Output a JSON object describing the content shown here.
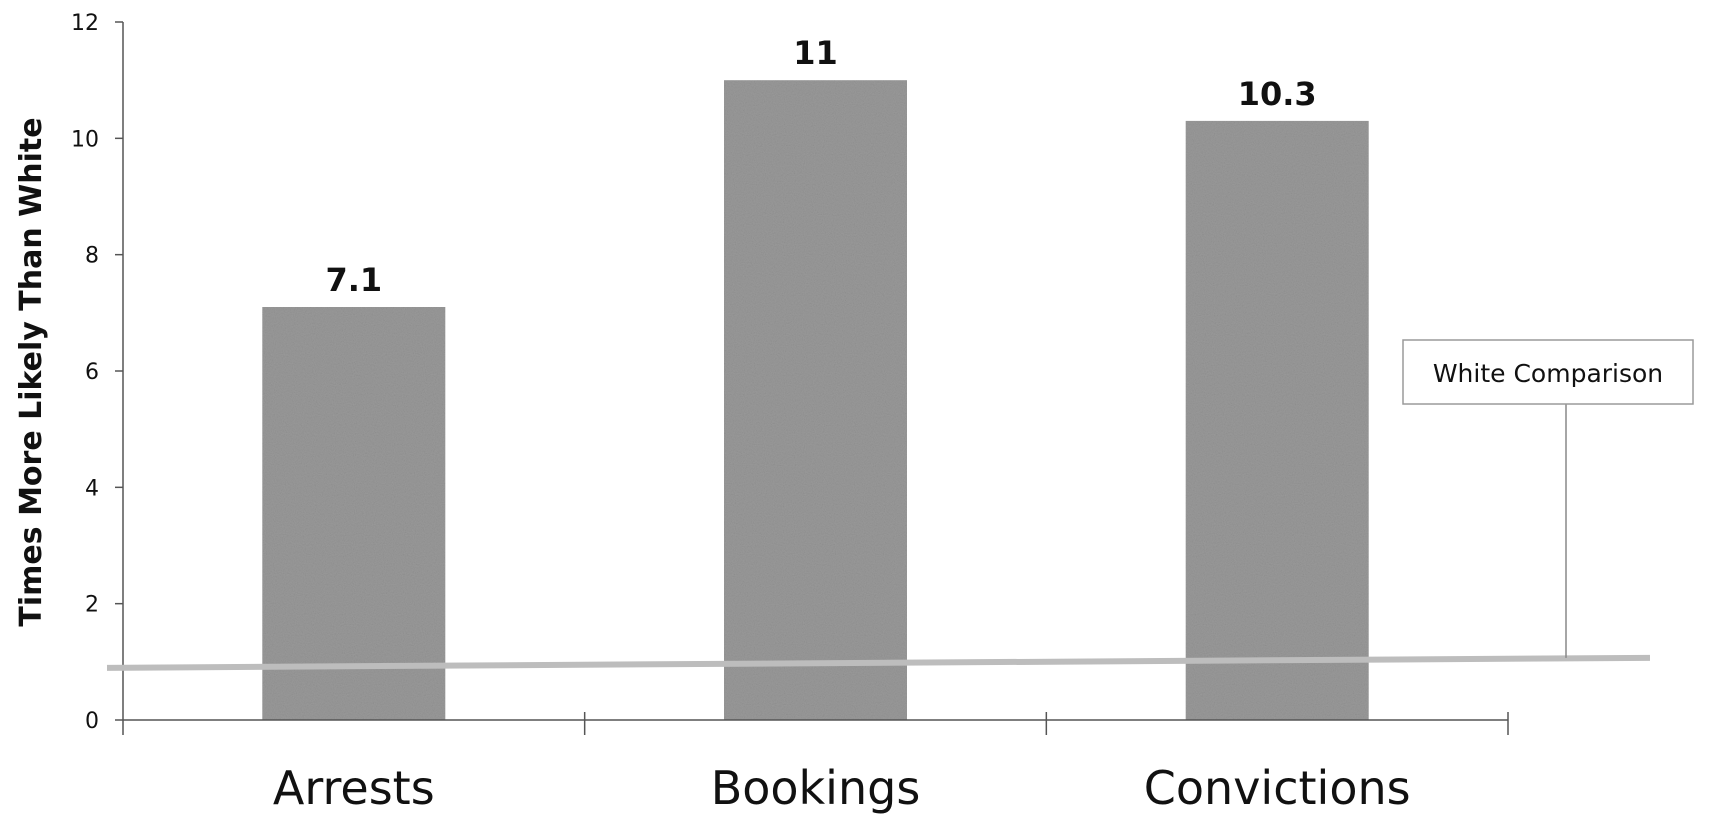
{
  "chart_data": {
    "type": "bar",
    "categories": [
      "Arrests",
      "Bookings",
      "Convictions"
    ],
    "values": [
      7.1,
      11,
      10.3
    ],
    "value_labels": [
      "7.1",
      "11",
      "10.3"
    ],
    "title": "",
    "xlabel": "",
    "ylabel": "Times More Likely Than  White",
    "ylim": [
      0,
      12
    ],
    "yticks": [
      0,
      2,
      4,
      6,
      8,
      10,
      12
    ],
    "ytick_labels": [
      "0",
      "2",
      "4",
      "6",
      "8",
      "10",
      "12"
    ],
    "reference_line": {
      "value": 1,
      "label": "White Comparison"
    },
    "grid": false,
    "colors": {
      "bar": "#9a9a9a",
      "reference_line": "#bdbdbd",
      "axis": "#555555",
      "text": "#111111"
    }
  }
}
